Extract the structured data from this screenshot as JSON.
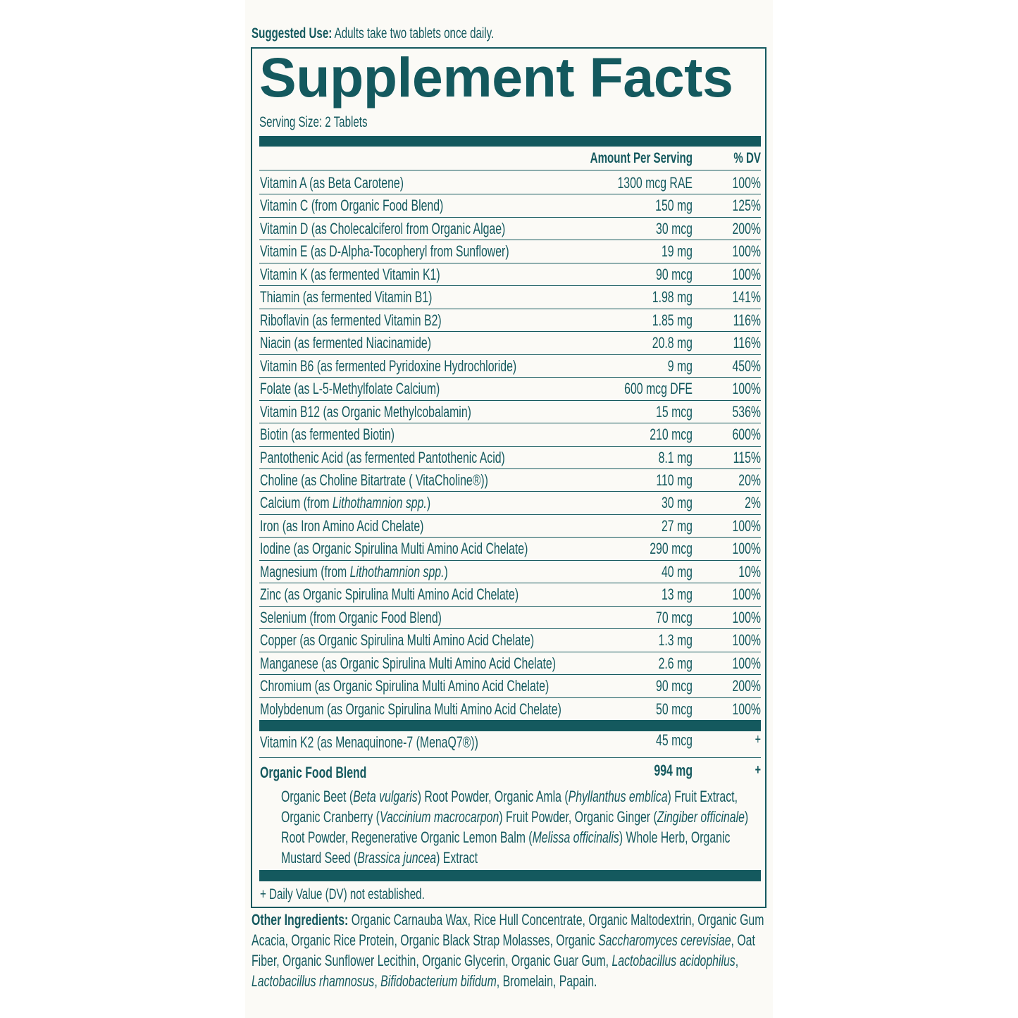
{
  "suggested_use": {
    "label": "Suggested Use:",
    "text": "Adults take two tablets once daily."
  },
  "title": "Supplement Facts",
  "serving_size": "Serving Size: 2 Tablets",
  "header": {
    "amount": "Amount Per Serving",
    "dv": "% DV"
  },
  "rows": [
    {
      "name": "Vitamin A (as Beta Carotene)",
      "amount": "1300 mcg RAE",
      "dv": "100%"
    },
    {
      "name": "Vitamin C (from Organic Food Blend)",
      "amount": "150 mg",
      "dv": "125%"
    },
    {
      "name": "Vitamin D (as Cholecalciferol from Organic Algae)",
      "amount": "30 mcg",
      "dv": "200%"
    },
    {
      "name": "Vitamin E (as D-Alpha-Tocopheryl from Sunflower)",
      "amount": "19 mg",
      "dv": "100%"
    },
    {
      "name": "Vitamin K (as fermented Vitamin K1)",
      "amount": "90 mcg",
      "dv": "100%"
    },
    {
      "name": "Thiamin (as fermented Vitamin B1)",
      "amount": "1.98 mg",
      "dv": "141%"
    },
    {
      "name": "Riboflavin (as fermented Vitamin B2)",
      "amount": "1.85 mg",
      "dv": "116%"
    },
    {
      "name": "Niacin (as fermented Niacinamide)",
      "amount": "20.8 mg",
      "dv": "116%"
    },
    {
      "name": "Vitamin B6 (as fermented Pyridoxine Hydrochloride)",
      "amount": "9 mg",
      "dv": "450%"
    },
    {
      "name": "Folate (as L-5-Methylfolate Calcium)",
      "amount": "600 mcg DFE",
      "dv": "100%"
    },
    {
      "name": "Vitamin B12 (as Organic Methylcobalamin)",
      "amount": "15 mcg",
      "dv": "536%"
    },
    {
      "name": "Biotin (as fermented Biotin)",
      "amount": "210 mcg",
      "dv": "600%"
    },
    {
      "name": "Pantothenic Acid (as fermented Pantothenic Acid)",
      "amount": "8.1 mg",
      "dv": "115%"
    },
    {
      "name": "Choline (as Choline Bitartrate ( VitaCholine®))",
      "amount": "110 mg",
      "dv": "20%"
    },
    {
      "name": [
        "Calcium (from ",
        {
          "i": "Lithothamnion spp."
        },
        ")"
      ],
      "amount": "30 mg",
      "dv": "2%"
    },
    {
      "name": "Iron (as Iron Amino Acid Chelate)",
      "amount": "27 mg",
      "dv": "100%"
    },
    {
      "name": "Iodine (as Organic Spirulina Multi Amino Acid Chelate)",
      "amount": "290 mcg",
      "dv": "100%"
    },
    {
      "name": [
        "Magnesium (from ",
        {
          "i": "Lithothamnion spp."
        },
        ")"
      ],
      "amount": "40 mg",
      "dv": "10%"
    },
    {
      "name": "Zinc (as Organic Spirulina Multi Amino Acid Chelate)",
      "amount": "13 mg",
      "dv": "100%"
    },
    {
      "name": "Selenium (from Organic Food Blend)",
      "amount": "70 mcg",
      "dv": "100%"
    },
    {
      "name": "Copper (as Organic Spirulina Multi Amino Acid Chelate)",
      "amount": "1.3 mg",
      "dv": "100%"
    },
    {
      "name": "Manganese (as Organic Spirulina Multi Amino Acid Chelate)",
      "amount": "2.6 mg",
      "dv": "100%"
    },
    {
      "name": "Chromium (as Organic Spirulina Multi Amino Acid Chelate)",
      "amount": "90 mcg",
      "dv": "200%"
    },
    {
      "name": "Molybdenum (as Organic Spirulina Multi Amino Acid Chelate)",
      "amount": "50 mcg",
      "dv": "100%"
    }
  ],
  "extra_rows": [
    {
      "name": "Vitamin K2 (as Menaquinone-7 (MenaQ7®))",
      "amount": "45 mcg",
      "dv": "+"
    },
    {
      "name": "Organic Food Blend",
      "amount": "994 mg",
      "dv": "+"
    }
  ],
  "blend_ingredients": [
    "Organic Beet (",
    {
      "i": "Beta vulgaris"
    },
    ") Root Powder, Organic Amla (",
    {
      "i": "Phyllanthus emblica"
    },
    ") Fruit Extract, Organic Cranberry (",
    {
      "i": "Vaccinium macrocarpon"
    },
    ") Fruit Powder, Organic Ginger (",
    {
      "i": "Zingiber officinale"
    },
    ") Root Powder, Regenerative Organic Lemon Balm (",
    {
      "i": "Melissa officinalis"
    },
    ") Whole Herb, Organic Mustard Seed (",
    {
      "i": "Brassica juncea"
    },
    ") Extract"
  ],
  "footnote": "+ Daily Value (DV) not established.",
  "other_ingredients": {
    "label": "Other Ingredients:",
    "text": [
      "Organic Carnauba Wax, Rice Hull Concentrate, Organic Maltodextrin, Organic Gum Acacia, Organic Rice Protein, Organic Black Strap Molasses, Organic ",
      {
        "i": "Saccharomyces cerevisiae"
      },
      ", Oat Fiber, Organic Sunflower Lecithin, Organic Glycerin, Organic Guar Gum, ",
      {
        "i": "Lactobacillus acidophilus"
      },
      ", ",
      {
        "i": "Lactobacillus rhamnosus"
      },
      ", ",
      {
        "i": "Bifidobacterium bifidum"
      },
      ", Bromelain, Papain."
    ]
  }
}
